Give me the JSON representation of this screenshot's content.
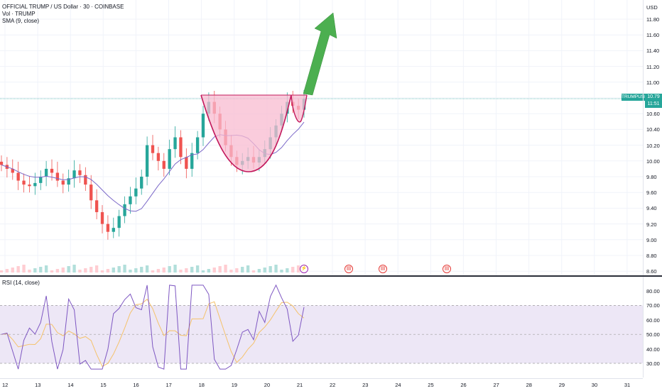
{
  "header": {
    "symbol_line": "OFFICIAL TRUMP / US Dollar · 30 · COINBASE",
    "volume_line": "Vol · TRUMP",
    "sma_line": "SMA (9, close)"
  },
  "price_axis": {
    "currency": "USD",
    "ticks": [
      "11.80",
      "11.60",
      "11.40",
      "11.20",
      "11.00",
      "10.80",
      "10.60",
      "10.40",
      "10.20",
      "10.00",
      "9.80",
      "9.60",
      "9.40",
      "9.20",
      "9.00",
      "8.80",
      "8.60"
    ]
  },
  "last_price": {
    "ticker": "TRUMPUSD",
    "price": "10.79",
    "countdown": "11:51",
    "color": "#26a69a"
  },
  "rsi": {
    "label": "RSI (14, close)",
    "ticks": [
      "80.00",
      "70.00",
      "60.00",
      "50.00",
      "40.00",
      "30.00"
    ]
  },
  "time_axis": {
    "ticks": [
      "12",
      "13",
      "14",
      "15",
      "16",
      "17",
      "18",
      "19",
      "20",
      "21",
      "22",
      "23",
      "24",
      "25",
      "26",
      "27",
      "28",
      "29",
      "30",
      "31"
    ]
  },
  "events": [
    {
      "icon": "lightning-icon",
      "glyph": "⚡",
      "color": "#9c27b0"
    },
    {
      "icon": "us-flag-icon",
      "glyph": "▤",
      "color": "#e53935"
    },
    {
      "icon": "us-flag-icon",
      "glyph": "▤",
      "color": "#e53935"
    },
    {
      "icon": "us-flag-icon",
      "glyph": "▤",
      "color": "#e53935"
    }
  ],
  "colors": {
    "up": "#26a69a",
    "down": "#ef5350",
    "sma": "#7b68c8",
    "cup_fill": "#f8bbd0",
    "cup_stroke": "#c2185b",
    "arrow": "#4caf50",
    "rsi_line": "#7e57c2",
    "rsi_band": "#ede7f6"
  },
  "chart_data": {
    "type": "candlestick",
    "ylim": [
      8.6,
      11.9
    ],
    "x_ticks": [
      "12",
      "13",
      "14",
      "15",
      "16",
      "17",
      "18",
      "19",
      "20",
      "21",
      "22",
      "23",
      "24",
      "25",
      "26",
      "27",
      "28",
      "29",
      "30",
      "31"
    ],
    "close_series": [
      9.95,
      9.9,
      9.85,
      9.75,
      9.7,
      9.68,
      9.72,
      9.8,
      9.9,
      9.85,
      9.75,
      9.7,
      9.78,
      9.88,
      9.82,
      9.7,
      9.5,
      9.35,
      9.2,
      9.1,
      9.15,
      9.3,
      9.45,
      9.55,
      9.65,
      9.8,
      10.2,
      10.1,
      10.0,
      9.9,
      10.15,
      10.3,
      10.05,
      9.9,
      10.1,
      10.3,
      10.6,
      10.75,
      10.6,
      10.4,
      10.2,
      10.05,
      9.95,
      10.0,
      10.05,
      9.98,
      10.05,
      10.15,
      10.3,
      10.45,
      10.6,
      10.75,
      10.7,
      10.65,
      10.79
    ],
    "annotations": [
      "cup and handle pattern",
      "upward arrow"
    ],
    "rsi_range": [
      25,
      85
    ],
    "rsi_levels": [
      70,
      50,
      30
    ]
  }
}
